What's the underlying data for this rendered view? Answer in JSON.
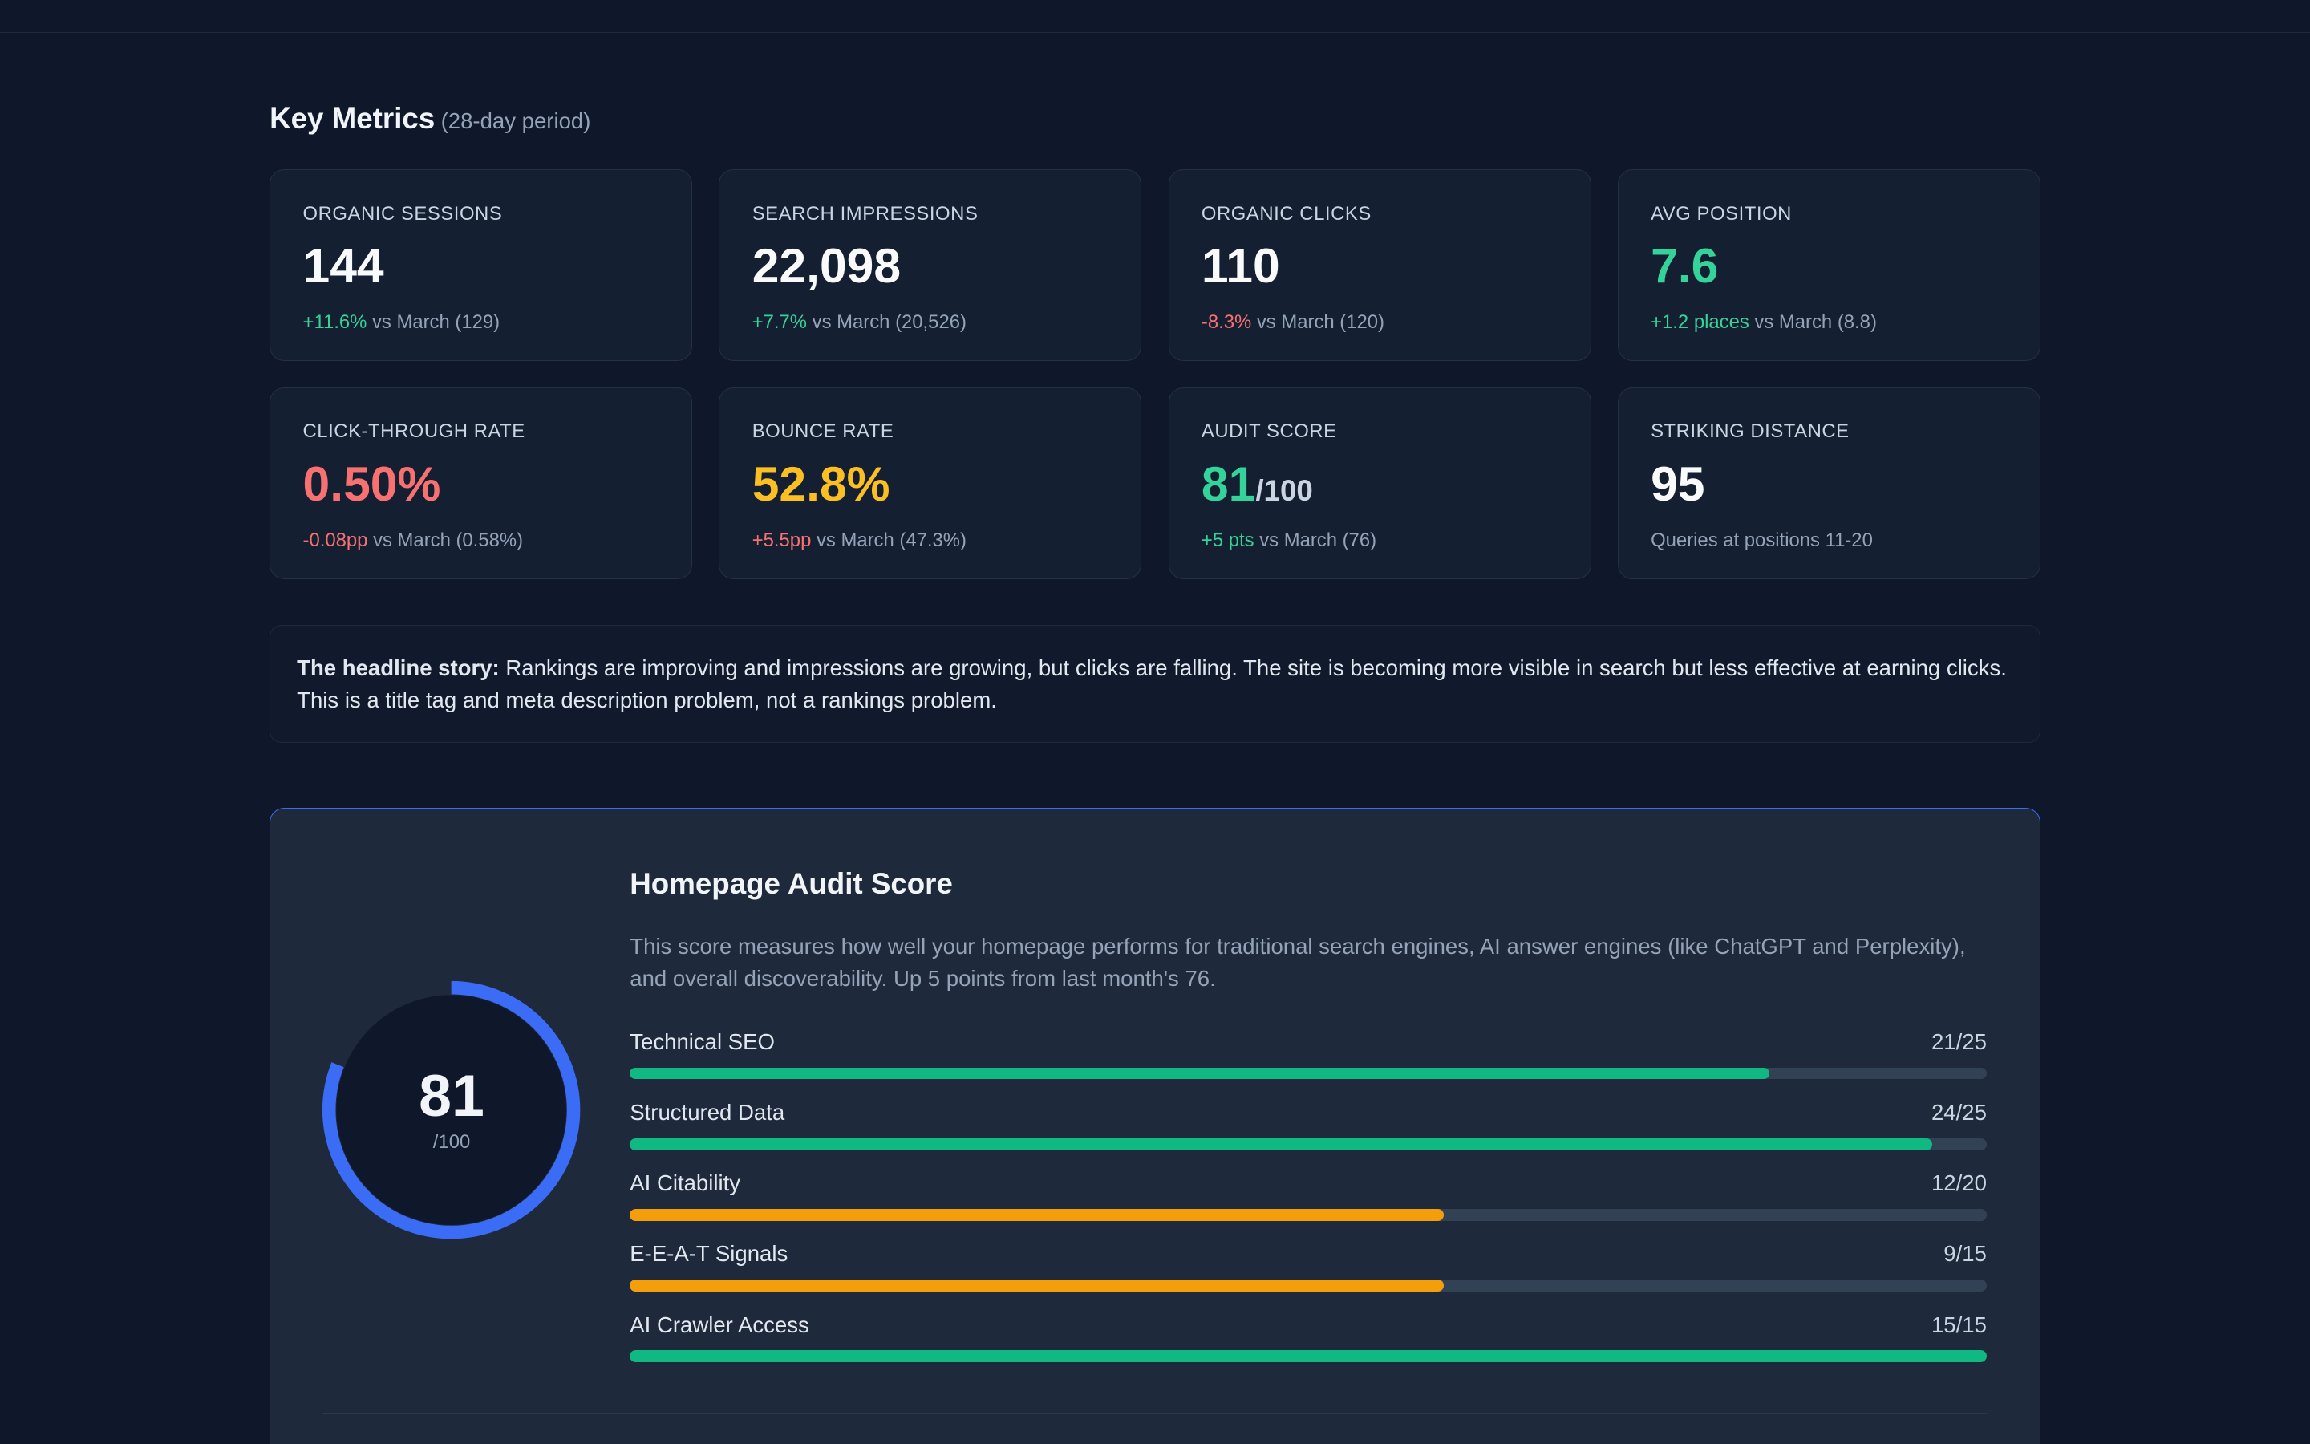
{
  "header": {
    "title": "Key Metrics",
    "subtitle": "(28-day period)"
  },
  "colors": {
    "positive": "#34d399",
    "negative": "#f87171",
    "warning": "#fbbf24",
    "accent": "#3b6cf6",
    "bar_green": "#10b981",
    "bar_orange": "#f59e0b"
  },
  "metrics": [
    {
      "label": "ORGANIC SESSIONS",
      "value": "144",
      "denom": "",
      "change": "+11.6%",
      "comparison": " vs March (129)",
      "value_color": "#f8fafc",
      "change_color": "#34d399"
    },
    {
      "label": "SEARCH IMPRESSIONS",
      "value": "22,098",
      "denom": "",
      "change": "+7.7%",
      "comparison": " vs March (20,526)",
      "value_color": "#f8fafc",
      "change_color": "#34d399"
    },
    {
      "label": "ORGANIC CLICKS",
      "value": "110",
      "denom": "",
      "change": "-8.3%",
      "comparison": " vs March (120)",
      "value_color": "#f8fafc",
      "change_color": "#f87171"
    },
    {
      "label": "AVG POSITION",
      "value": "7.6",
      "denom": "",
      "change": "+1.2 places",
      "comparison": " vs March (8.8)",
      "value_color": "#34d399",
      "change_color": "#34d399"
    },
    {
      "label": "CLICK-THROUGH RATE",
      "value": "0.50%",
      "denom": "",
      "change": "-0.08pp",
      "comparison": " vs March (0.58%)",
      "value_color": "#f87171",
      "change_color": "#f87171"
    },
    {
      "label": "BOUNCE RATE",
      "value": "52.8%",
      "denom": "",
      "change": "+5.5pp",
      "comparison": " vs March (47.3%)",
      "value_color": "#fbbf24",
      "change_color": "#f87171"
    },
    {
      "label": "AUDIT SCORE",
      "value": "81",
      "denom": "/100",
      "change": "+5 pts",
      "comparison": " vs March (76)",
      "value_color": "#34d399",
      "change_color": "#34d399"
    },
    {
      "label": "STRIKING DISTANCE",
      "value": "95",
      "denom": "",
      "change": "",
      "comparison": "Queries at positions 11-20",
      "value_color": "#f8fafc",
      "change_color": "#34d399"
    }
  ],
  "story": {
    "lead": "The headline story:",
    "text": " Rankings are improving and impressions are growing, but clicks are falling. The site is becoming more visible in search but less effective at earning clicks. This is a title tag and meta description problem, not a rankings problem."
  },
  "audit": {
    "title": "Homepage Audit Score",
    "description": "This score measures how well your homepage performs for traditional search engines, AI answer engines (like ChatGPT and Perplexity), and overall discoverability. Up 5 points from last month's 76.",
    "score": "81",
    "score_max": "/100",
    "score_value": 81,
    "categories": [
      {
        "label": "Technical SEO",
        "score": "21/25",
        "value": 21,
        "max": 25,
        "color": "#10b981"
      },
      {
        "label": "Structured Data",
        "score": "24/25",
        "value": 24,
        "max": 25,
        "color": "#10b981"
      },
      {
        "label": "AI Citability",
        "score": "12/20",
        "value": 12,
        "max": 20,
        "color": "#f59e0b"
      },
      {
        "label": "E-E-A-T Signals",
        "score": "9/15",
        "value": 9,
        "max": 15,
        "color": "#f59e0b"
      },
      {
        "label": "AI Crawler Access",
        "score": "15/15",
        "value": 15,
        "max": 15,
        "color": "#10b981"
      }
    ]
  }
}
